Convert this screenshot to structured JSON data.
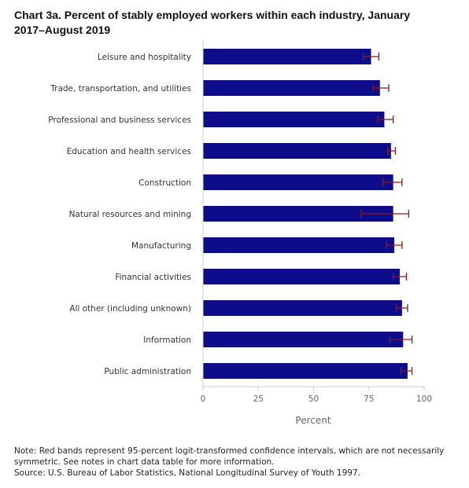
{
  "chart_data": {
    "type": "bar",
    "orientation": "horizontal",
    "title": "Chart 3a. Percent of stably employed workers within each industry, January 2017–August 2019",
    "xlabel": "Percent",
    "ylabel": "",
    "xlim": [
      0,
      100
    ],
    "ticks": [
      "0",
      "25",
      "50",
      "75",
      "100"
    ],
    "grid": false,
    "categories": [
      "Leisure and hospitality",
      "Trade, transportation, and utilities",
      "Professional and business services",
      "Education and health services",
      "Construction",
      "Natural resources and mining",
      "Manufacturing",
      "Financial activities",
      "All other (including unknown)",
      "Information",
      "Public administration"
    ],
    "values": [
      76,
      80,
      82,
      85,
      86,
      86,
      86.5,
      89,
      90,
      90.5,
      92.5
    ],
    "ci_low": [
      72.5,
      77,
      79,
      83.5,
      81.5,
      71.5,
      83,
      86,
      87.5,
      84.5,
      89.5
    ],
    "ci_high": [
      79.5,
      84,
      86,
      87,
      90,
      93,
      90,
      92,
      92.5,
      94.5,
      94.5
    ],
    "colors": {
      "bar": "#0d0d8c",
      "error": "#8b1a1a",
      "axis": "#cccccc"
    }
  },
  "notes": {
    "line1": "Note: Red bands represent 95-percent logit-transformed confidence intervals, which are not necessarily",
    "line2": "symmetric. See notes in chart data table for more information.",
    "source": "Source: U.S. Bureau of Labor Statistics, National Longitudinal Survey of Youth 1997."
  }
}
